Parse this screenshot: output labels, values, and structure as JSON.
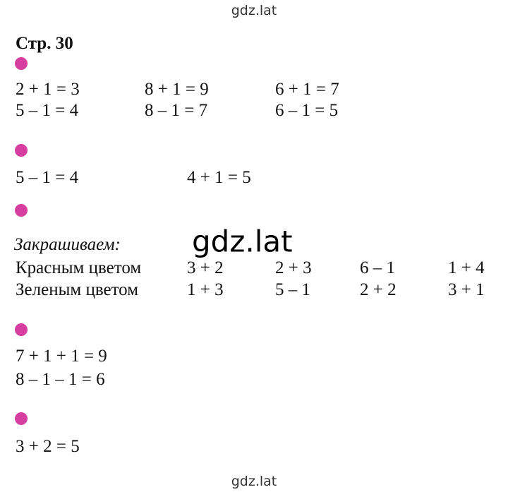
{
  "watermarks": {
    "top": "gdz.lat",
    "middle": "gdz.lat",
    "bottom": "gdz.lat"
  },
  "page_title": "Стр. 30",
  "sections": [
    {
      "rows": [
        [
          "2 + 1 = 3",
          "8 + 1 = 9",
          "6 + 1 = 7"
        ],
        [
          "5 – 1 = 4",
          "8 – 1 = 7",
          "6 – 1 = 5"
        ]
      ]
    },
    {
      "rows": [
        [
          "5 – 1 = 4",
          "4 + 1 = 5"
        ]
      ]
    },
    {
      "intro": "Закрашиваем:",
      "rows": [
        [
          "Красным цветом",
          "3 + 2",
          "2 + 3",
          "6 – 1",
          "1 + 4"
        ],
        [
          "Зеленым цветом",
          "1 + 3",
          "5 – 1",
          "2 + 2",
          "3 + 1"
        ]
      ]
    },
    {
      "rows": [
        [
          "7 + 1 + 1 = 9"
        ],
        [
          "8 – 1 – 1 = 6"
        ]
      ]
    },
    {
      "rows": [
        [
          "3 + 2 = 5"
        ]
      ]
    }
  ]
}
